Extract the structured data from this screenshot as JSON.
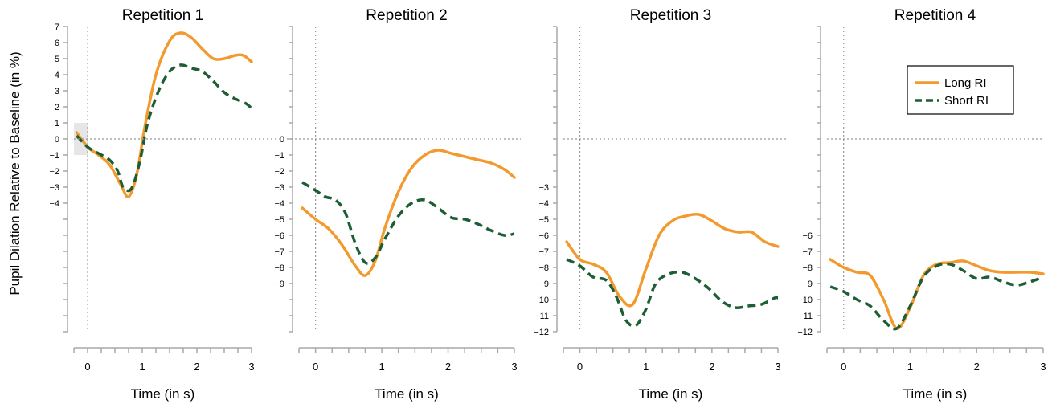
{
  "chart_data": {
    "type": "line",
    "ylabel": "Pupil Dilation Relative to Baseline (in %)",
    "colors": {
      "Long RI": "#f39a2e",
      "Short RI": "#1e5e35"
    },
    "legend": {
      "placement": "top-right of Repetition 4 panel",
      "entries": [
        "Long RI",
        "Short RI"
      ]
    },
    "panels": [
      {
        "title": "Repetition 1",
        "xlabel": "Time (in s)",
        "xticks": [
          0,
          1,
          2,
          3
        ],
        "xlim": [
          -0.25,
          3
        ],
        "yticks": [
          -4,
          -3,
          -2,
          -1,
          0,
          1,
          2,
          3,
          4,
          5,
          6,
          7
        ],
        "baseline_box": {
          "x": [
            -0.25,
            0
          ],
          "y": [
            -1,
            1
          ]
        },
        "series": [
          {
            "name": "Long RI",
            "x": [
              -0.2,
              0,
              0.2,
              0.4,
              0.6,
              0.75,
              0.9,
              1.05,
              1.25,
              1.5,
              1.7,
              1.9,
              2.1,
              2.3,
              2.5,
              2.7,
              2.85,
              3.0
            ],
            "y": [
              0.4,
              -0.5,
              -1.0,
              -1.6,
              -2.8,
              -3.6,
              -2.2,
              0.8,
              4.0,
              6.1,
              6.6,
              6.3,
              5.6,
              5.0,
              5.0,
              5.2,
              5.2,
              4.8
            ]
          },
          {
            "name": "Short RI",
            "x": [
              -0.2,
              0,
              0.2,
              0.4,
              0.55,
              0.65,
              0.8,
              0.95,
              1.1,
              1.3,
              1.5,
              1.7,
              1.9,
              2.1,
              2.3,
              2.5,
              2.7,
              2.9,
              3.0
            ],
            "y": [
              0.2,
              -0.5,
              -0.9,
              -1.3,
              -2.0,
              -3.0,
              -3.1,
              -1.5,
              1.0,
              3.0,
              4.2,
              4.6,
              4.4,
              4.2,
              3.6,
              2.9,
              2.5,
              2.2,
              1.9
            ]
          }
        ]
      },
      {
        "title": "Repetition 2",
        "xlabel": "Time (in s)",
        "xticks": [
          0,
          1,
          2,
          3
        ],
        "xlim": [
          -0.25,
          3
        ],
        "yticks": [
          -9,
          -8,
          -7,
          -6,
          -5,
          -4,
          -3,
          -2,
          -1,
          0
        ],
        "series": [
          {
            "name": "Long RI",
            "x": [
              -0.2,
              0,
              0.2,
              0.4,
              0.6,
              0.75,
              0.9,
              1.05,
              1.25,
              1.45,
              1.65,
              1.85,
              2.05,
              2.25,
              2.45,
              2.65,
              2.85,
              3.0
            ],
            "y": [
              -4.3,
              -5.0,
              -5.6,
              -6.6,
              -7.9,
              -8.5,
              -7.6,
              -5.5,
              -3.3,
              -1.8,
              -1.0,
              -0.7,
              -0.9,
              -1.1,
              -1.3,
              -1.5,
              -1.9,
              -2.4
            ]
          },
          {
            "name": "Short RI",
            "x": [
              -0.2,
              0,
              0.15,
              0.3,
              0.45,
              0.6,
              0.75,
              0.9,
              1.05,
              1.25,
              1.45,
              1.65,
              1.85,
              2.05,
              2.25,
              2.45,
              2.65,
              2.85,
              3.0
            ],
            "y": [
              -2.7,
              -3.2,
              -3.6,
              -3.8,
              -4.6,
              -6.5,
              -7.7,
              -7.4,
              -6.2,
              -4.8,
              -4.0,
              -3.8,
              -4.3,
              -4.9,
              -5.0,
              -5.3,
              -5.7,
              -6.0,
              -5.9
            ]
          }
        ]
      },
      {
        "title": "Repetition 3",
        "xlabel": "Time (in s)",
        "xticks": [
          0,
          1,
          2,
          3
        ],
        "xlim": [
          -0.25,
          3
        ],
        "yticks": [
          -12,
          -11,
          -10,
          -9,
          -8,
          -7,
          -6,
          -5,
          -4,
          -3
        ],
        "series": [
          {
            "name": "Long RI",
            "x": [
              -0.2,
              0,
              0.2,
              0.4,
              0.6,
              0.8,
              1.0,
              1.2,
              1.4,
              1.6,
              1.8,
              2.0,
              2.2,
              2.4,
              2.6,
              2.8,
              3.0
            ],
            "y": [
              -6.4,
              -7.5,
              -7.8,
              -8.3,
              -9.8,
              -10.3,
              -8.1,
              -6.0,
              -5.1,
              -4.8,
              -4.7,
              -5.1,
              -5.6,
              -5.8,
              -5.8,
              -6.4,
              -6.7
            ]
          },
          {
            "name": "Short RI",
            "x": [
              -0.2,
              0,
              0.2,
              0.4,
              0.55,
              0.7,
              0.85,
              1.0,
              1.15,
              1.35,
              1.55,
              1.75,
              1.95,
              2.15,
              2.35,
              2.55,
              2.75,
              2.95,
              3.0
            ],
            "y": [
              -7.5,
              -7.9,
              -8.6,
              -8.8,
              -9.8,
              -11.3,
              -11.6,
              -10.6,
              -9.0,
              -8.4,
              -8.3,
              -8.7,
              -9.3,
              -10.1,
              -10.5,
              -10.4,
              -10.3,
              -9.9,
              -9.9
            ]
          }
        ]
      },
      {
        "title": "Repetition 4",
        "xlabel": "Time (in s)",
        "xticks": [
          0,
          1,
          2,
          3
        ],
        "xlim": [
          -0.25,
          3
        ],
        "yticks": [
          -12,
          -11,
          -10,
          -9,
          -8,
          -7,
          -6
        ],
        "series": [
          {
            "name": "Long RI",
            "x": [
              -0.2,
              0,
              0.2,
              0.4,
              0.6,
              0.8,
              1.0,
              1.2,
              1.4,
              1.6,
              1.8,
              2.0,
              2.2,
              2.4,
              2.6,
              2.8,
              3.0
            ],
            "y": [
              -7.5,
              -8.0,
              -8.3,
              -8.5,
              -10.0,
              -11.8,
              -10.5,
              -8.5,
              -7.8,
              -7.7,
              -7.6,
              -7.9,
              -8.2,
              -8.3,
              -8.3,
              -8.3,
              -8.4
            ]
          },
          {
            "name": "Short RI",
            "x": [
              -0.2,
              0,
              0.2,
              0.4,
              0.6,
              0.8,
              1.0,
              1.2,
              1.4,
              1.6,
              1.8,
              2.0,
              2.2,
              2.4,
              2.6,
              2.8,
              3.0
            ],
            "y": [
              -9.2,
              -9.5,
              -10.0,
              -10.4,
              -11.3,
              -11.8,
              -10.4,
              -8.6,
              -7.9,
              -7.8,
              -8.2,
              -8.7,
              -8.6,
              -8.9,
              -9.1,
              -8.9,
              -8.6
            ]
          }
        ]
      }
    ]
  }
}
